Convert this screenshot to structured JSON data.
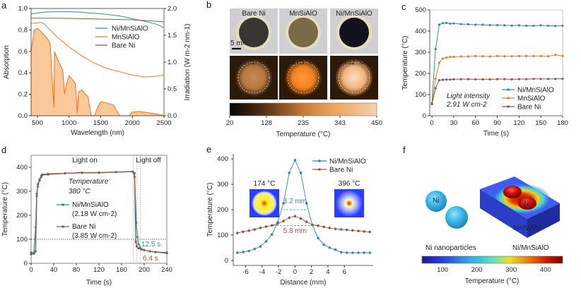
{
  "panels": {
    "a": {
      "label": "a"
    },
    "b": {
      "label": "b"
    },
    "c": {
      "label": "c"
    },
    "d": {
      "label": "d"
    },
    "e": {
      "label": "e"
    },
    "f": {
      "label": "f"
    }
  },
  "colors": {
    "ni_mnsialo": "#3a87a3",
    "mnsialo": "#e8822a",
    "bare_ni": "#8a5a4a",
    "solar": "#f07020",
    "solar_fill": "#fbc89a"
  },
  "chart_data": [
    {
      "id": "a",
      "type": "line",
      "title": "",
      "xlabel": "Wavelength (nm)",
      "ylabel": "Absorption",
      "y2label": "Irradiation (W m-2 nm-1)",
      "xlim": [
        400,
        2500
      ],
      "ylim": [
        0,
        1.0
      ],
      "y2lim": [
        0,
        2.0
      ],
      "xticks": [
        500,
        1000,
        1500,
        2000,
        2500
      ],
      "yticks": [
        "0.0",
        "0.2",
        "0.4",
        "0.6",
        "0.8",
        "1.0"
      ],
      "y2ticks": [
        "0.0",
        "0.5",
        "1.0",
        "1.5",
        "2.0"
      ],
      "legend": [
        "Ni/MnSiAlO",
        "MnSiAlO",
        "Bare Ni"
      ],
      "legend_position": "top-right",
      "series": [
        {
          "name": "Ni/MnSiAlO",
          "x": [
            400,
            600,
            800,
            1000,
            1200,
            1400,
            1600,
            1800,
            2000,
            2200,
            2400,
            2500
          ],
          "y": [
            0.95,
            0.965,
            0.97,
            0.97,
            0.965,
            0.955,
            0.945,
            0.93,
            0.905,
            0.88,
            0.85,
            0.82
          ]
        },
        {
          "name": "MnSiAlO",
          "x": [
            400,
            550,
            600,
            700,
            800,
            1000,
            1200,
            1400,
            1600,
            1800,
            2000,
            2200,
            2400,
            2500
          ],
          "y": [
            0.86,
            0.87,
            0.86,
            0.8,
            0.74,
            0.64,
            0.56,
            0.49,
            0.44,
            0.41,
            0.38,
            0.36,
            0.37,
            0.38
          ]
        },
        {
          "name": "Bare Ni",
          "x": [
            400,
            800,
            1200,
            1600,
            2000,
            2400,
            2500
          ],
          "y": [
            0.91,
            0.91,
            0.905,
            0.9,
            0.895,
            0.88,
            0.875
          ]
        },
        {
          "name": "Solar irradiation",
          "axis": "y2",
          "x": [
            400,
            450,
            500,
            550,
            650,
            700,
            760,
            770,
            800,
            900,
            930,
            950,
            1000,
            1100,
            1130,
            1150,
            1200,
            1300,
            1350,
            1400,
            1450,
            1500,
            1600,
            1700,
            1800,
            1850,
            1950,
            2000,
            2100,
            2300,
            2450,
            2500
          ],
          "y": [
            1.2,
            1.6,
            1.63,
            1.58,
            1.45,
            1.35,
            0.15,
            1.2,
            1.1,
            0.85,
            0.4,
            0.55,
            0.75,
            0.6,
            0.05,
            0.45,
            0.48,
            0.35,
            0.0,
            0.0,
            0.15,
            0.26,
            0.24,
            0.2,
            0.0,
            0.0,
            0.0,
            0.07,
            0.08,
            0.05,
            0.02,
            0.0
          ]
        }
      ]
    },
    {
      "id": "b",
      "type": "heatmap",
      "samples": [
        "Bare Ni",
        "MnSiAlO",
        "Ni/MnSiAlO"
      ],
      "scale_bar": "5 mm",
      "temperatures": [
        "175 °C",
        "275 °C",
        "432 °C"
      ],
      "colorbar_ticks": [
        "20",
        "128",
        "235",
        "343",
        "450"
      ],
      "colorbar_label": "Temperature (°C)",
      "colorbar_range": [
        20,
        450
      ]
    },
    {
      "id": "c",
      "type": "line",
      "xlabel": "Time (s)",
      "ylabel": "Temperature (°C)",
      "xlim": [
        -3,
        180
      ],
      "ylim": [
        0,
        500
      ],
      "xticks": [
        "0",
        "30",
        "60",
        "90",
        "120",
        "150",
        "180"
      ],
      "yticks": [
        "0",
        "100",
        "200",
        "300",
        "400",
        "500"
      ],
      "annotation": [
        "Light intensity",
        "2.91 W cm-2"
      ],
      "legend": [
        "Ni/MnSiAlO",
        "MnSiAlO",
        "Bare Ni"
      ],
      "legend_position": "bottom-right",
      "series": [
        {
          "name": "Ni/MnSiAlO",
          "x": [
            0,
            5,
            10,
            15,
            20,
            25,
            30,
            40,
            50,
            60,
            70,
            80,
            90,
            100,
            110,
            120,
            130,
            140,
            150,
            160,
            170,
            180
          ],
          "y": [
            60,
            315,
            430,
            437,
            438,
            435,
            436,
            433,
            432,
            430,
            430,
            428,
            428,
            427,
            426,
            427,
            425,
            425,
            427,
            425,
            424,
            425
          ]
        },
        {
          "name": "MnSiAlO",
          "x": [
            0,
            5,
            10,
            15,
            20,
            25,
            30,
            40,
            50,
            60,
            70,
            80,
            90,
            100,
            110,
            120,
            130,
            140,
            150,
            160,
            170,
            180
          ],
          "y": [
            55,
            175,
            250,
            270,
            275,
            278,
            278,
            280,
            280,
            282,
            281,
            280,
            282,
            281,
            281,
            282,
            282,
            282,
            282,
            281,
            288,
            282
          ]
        },
        {
          "name": "Bare Ni",
          "x": [
            0,
            5,
            10,
            15,
            20,
            25,
            30,
            40,
            50,
            60,
            70,
            80,
            90,
            100,
            110,
            120,
            130,
            140,
            150,
            160,
            170,
            180
          ],
          "y": [
            55,
            130,
            168,
            170,
            171,
            171,
            172,
            173,
            173,
            172,
            172,
            172,
            173,
            173,
            172,
            173,
            173,
            174,
            174,
            174,
            174,
            175
          ]
        }
      ]
    },
    {
      "id": "d",
      "type": "line",
      "xlabel": "Time (s)",
      "ylabel": "Temperature (°C)",
      "xlim": [
        0,
        240
      ],
      "ylim": [
        0,
        450
      ],
      "xticks": [
        "0",
        "40",
        "80",
        "120",
        "160",
        "200",
        "240"
      ],
      "yticks": [
        "0",
        "100",
        "200",
        "300",
        "400"
      ],
      "regions": [
        "Light on",
        "Light off"
      ],
      "annotation": [
        "Temperature",
        "380 °C"
      ],
      "threshold_line": 100,
      "times": [
        "12.5 s",
        "6.4 s"
      ],
      "legend": [
        "Ni/MnSiAlO (2.18 W cm-2)",
        "Bare Ni (3.85 W cm-2)"
      ],
      "legend_labels": {
        "ni": "Ni/MnSiAlO",
        "ni_sub": "(2.18 W cm-2)",
        "bare": "Bare Ni",
        "bare_sub": "(3.85 W cm-2)"
      },
      "series": [
        {
          "name": "Ni/MnSiAlO",
          "x": [
            0,
            5,
            8,
            10,
            12,
            15,
            18,
            20,
            30,
            60,
            90,
            120,
            150,
            180,
            183,
            186,
            188,
            190,
            193,
            196,
            200,
            210,
            220,
            240
          ],
          "y": [
            45,
            45,
            150,
            290,
            320,
            350,
            365,
            370,
            373,
            375,
            377,
            377,
            380,
            382,
            360,
            170,
            110,
            80,
            65,
            58,
            55,
            50,
            47,
            45
          ]
        },
        {
          "name": "Bare Ni",
          "x": [
            0,
            5,
            8,
            10,
            12,
            15,
            18,
            20,
            30,
            60,
            90,
            120,
            150,
            180,
            183,
            185,
            187,
            190,
            195,
            200,
            210,
            220,
            240
          ],
          "y": [
            38,
            40,
            50,
            280,
            330,
            345,
            360,
            368,
            370,
            375,
            378,
            378,
            380,
            382,
            375,
            90,
            70,
            62,
            58,
            55,
            50,
            47,
            42
          ]
        }
      ]
    },
    {
      "id": "e",
      "type": "line",
      "xlabel": "Distance (mm)",
      "ylabel": "Temperature (°C)",
      "xlim": [
        -7.5,
        9.5
      ],
      "ylim": [
        -20,
        420
      ],
      "xticks": [
        "-6",
        "-4",
        "-2",
        "0",
        "2",
        "4",
        "6"
      ],
      "yticks": [
        "0",
        "100",
        "200",
        "300",
        "400"
      ],
      "legend": [
        "Ni/MnSiAlO",
        "Bare Ni"
      ],
      "legend_position": "top-right",
      "inset_labels": [
        "174 °C",
        "396 °C"
      ],
      "widths": [
        "3.2 mm",
        "5.8 mm"
      ],
      "series": [
        {
          "name": "Ni/MnSiAlO",
          "x": [
            -7,
            -6.3,
            -5.6,
            -4.9,
            -4.2,
            -3.5,
            -2.8,
            -2.1,
            -1.4,
            -0.7,
            0,
            0.7,
            1.4,
            2.1,
            2.8,
            3.5,
            4.2,
            4.9,
            5.6,
            6.3,
            7,
            7.7,
            8.4,
            9.1
          ],
          "y": [
            30,
            33,
            37,
            45,
            55,
            75,
            102,
            150,
            225,
            345,
            395,
            345,
            225,
            140,
            88,
            62,
            50,
            42,
            32,
            30,
            30,
            30,
            30,
            30
          ]
        },
        {
          "name": "Bare Ni",
          "x": [
            -7,
            -6.3,
            -5.6,
            -4.9,
            -4.2,
            -3.5,
            -2.8,
            -2.1,
            -1.4,
            -0.7,
            0,
            0.7,
            1.4,
            2.1,
            2.8,
            3.5,
            4.2,
            4.9,
            5.6,
            6.3,
            7,
            7.7,
            8.4,
            9.1
          ],
          "y": [
            108,
            113,
            117,
            122,
            128,
            133,
            138,
            145,
            155,
            168,
            174,
            165,
            152,
            140,
            137,
            132,
            128,
            124,
            122,
            120,
            118,
            116,
            114,
            112
          ]
        }
      ]
    },
    {
      "id": "f",
      "type": "heatmap",
      "labels": {
        "ni_left": "Ni",
        "ni_right": "Ni",
        "substrate": "MnSiAlO",
        "left_caption": "Ni nanoparticles",
        "right_caption": "Ni/MnSiAlO"
      },
      "colorbar_ticks": [
        "100",
        "200",
        "300",
        "400"
      ],
      "colorbar_label": "Temperature (°C)",
      "colorbar_range": [
        40,
        450
      ]
    }
  ]
}
